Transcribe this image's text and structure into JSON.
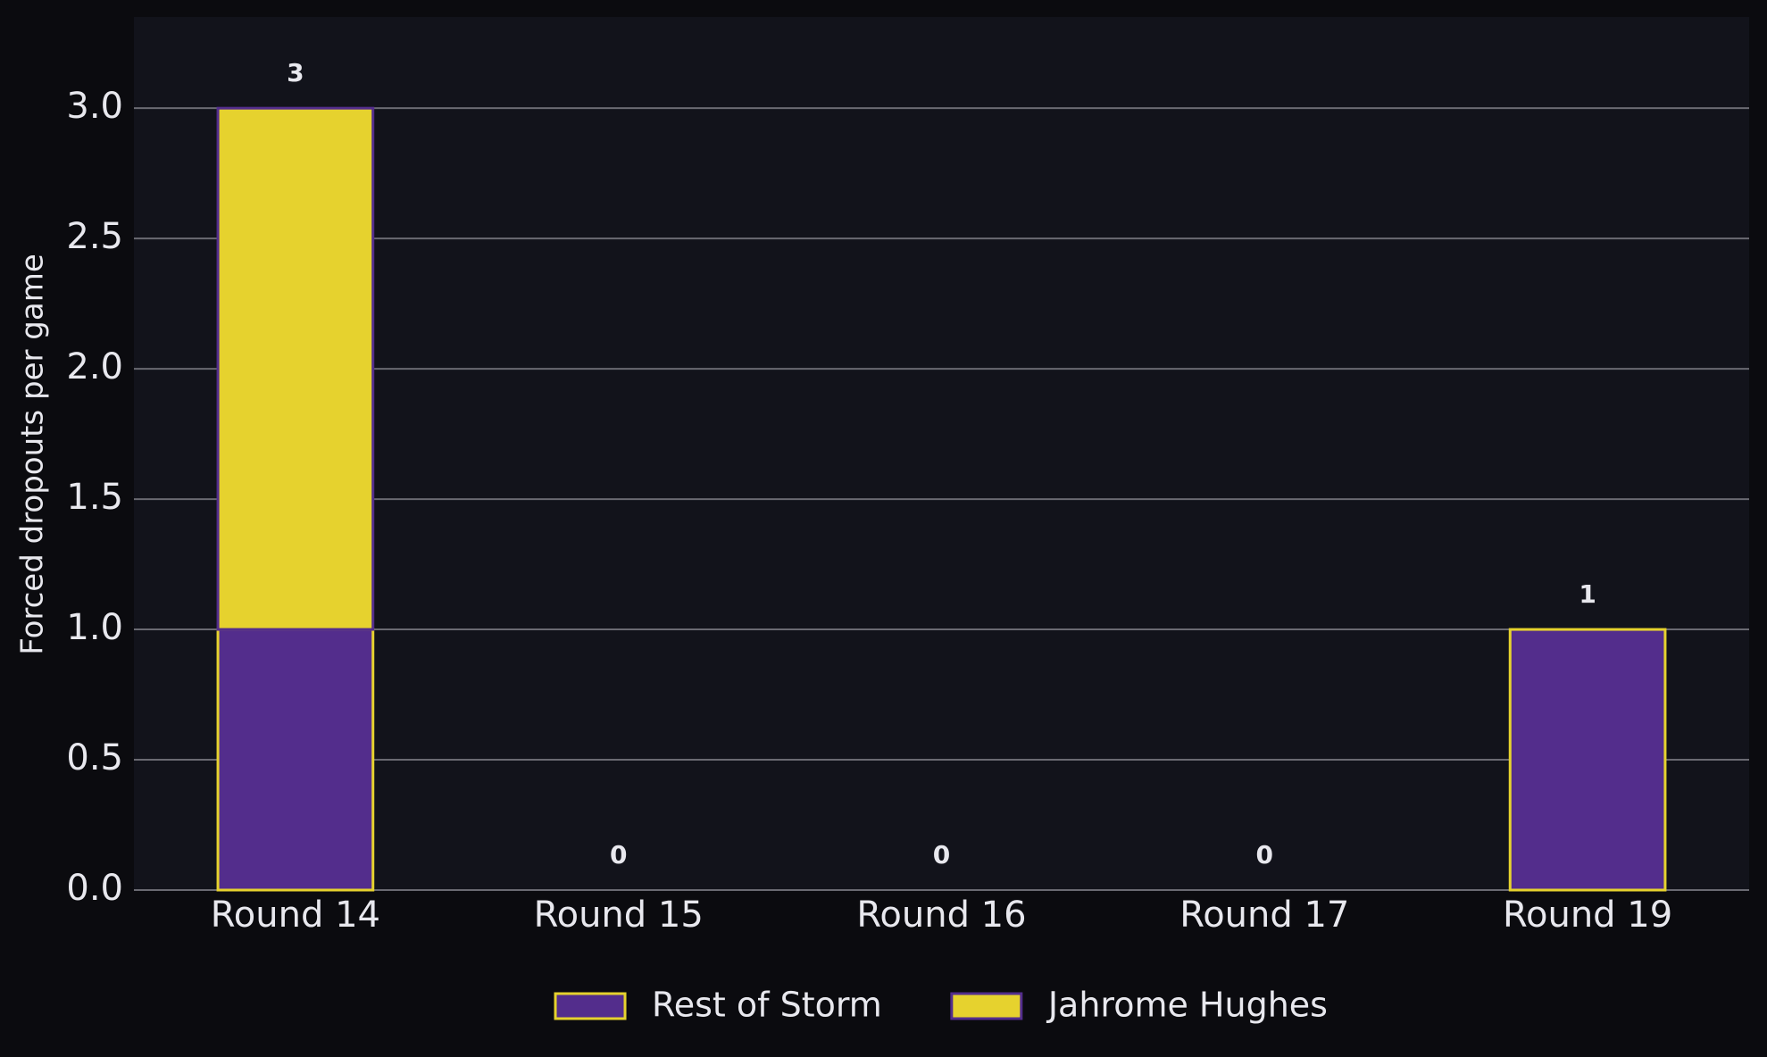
{
  "chart_data": {
    "type": "stacked_bar",
    "ylabel": "Forced dropouts per game",
    "categories": [
      "Round 14",
      "Round 15",
      "Round 16",
      "Round 17",
      "Round 19"
    ],
    "series": [
      {
        "name": "Rest of Storm",
        "color": "#532d8c",
        "edgecolor": "#e6d22e",
        "values": [
          1,
          0,
          0,
          0,
          1
        ]
      },
      {
        "name": "Jahrome Hughes",
        "color": "#e6d22e",
        "edgecolor": "#532d8c",
        "values": [
          2,
          0,
          0,
          0,
          0
        ]
      }
    ],
    "total_labels": [
      3,
      0,
      0,
      0,
      1
    ],
    "ylim": [
      0,
      3.35
    ],
    "yticks": [
      {
        "value": 0,
        "label": "0.0"
      },
      {
        "value": 0.5,
        "label": "0.5"
      },
      {
        "value": 1,
        "label": "1.0"
      },
      {
        "value": 1.5,
        "label": "1.5"
      },
      {
        "value": 2,
        "label": "2.0"
      },
      {
        "value": 2.5,
        "label": "2.5"
      },
      {
        "value": 3,
        "label": "3.0"
      }
    ],
    "grid": true,
    "legend": "bottom"
  }
}
